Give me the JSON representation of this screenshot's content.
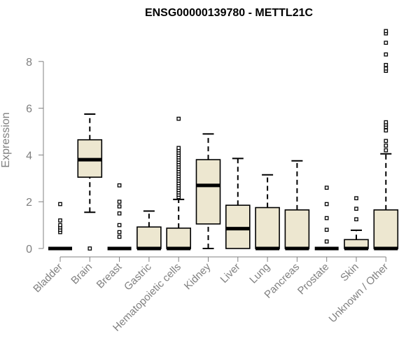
{
  "chart_data": {
    "type": "box",
    "title": "ENSG00000139780 - METTL21C",
    "ylabel": "Expression",
    "ylim": [
      0,
      9.3
    ],
    "yticks": [
      0,
      2,
      4,
      6,
      8
    ],
    "box_fill": "#ede7d0",
    "line_color": "#000000",
    "axis_color": "#808080",
    "categories": [
      "Bladder",
      "Brain",
      "Breast",
      "Gastric",
      "Hematopoietic cells",
      "Kidney",
      "Liver",
      "Lung",
      "Pancreas",
      "Prostate",
      "Skin",
      "Unknown / Other"
    ],
    "boxes": [
      {
        "q1": 0,
        "median": 0,
        "q3": 0,
        "wlo": 0,
        "whi": 0,
        "outliers": [
          0.7,
          0.8,
          0.9,
          1.0,
          1.2,
          1.9
        ]
      },
      {
        "q1": 3.05,
        "median": 3.8,
        "q3": 4.65,
        "wlo": 1.55,
        "whi": 5.75,
        "outliers": [
          0
        ]
      },
      {
        "q1": 0,
        "median": 0,
        "q3": 0,
        "wlo": 0,
        "whi": 0,
        "outliers": [
          0.5,
          0.7,
          1.0,
          1.5,
          1.8,
          2.0,
          2.7
        ]
      },
      {
        "q1": 0,
        "median": 0,
        "q3": 0.92,
        "wlo": 0,
        "whi": 1.6,
        "outliers": []
      },
      {
        "q1": 0,
        "median": 0,
        "q3": 0.87,
        "wlo": 0,
        "whi": 2.1,
        "outliers": [
          2.2,
          2.3,
          2.4,
          2.5,
          2.6,
          2.7,
          2.8,
          2.9,
          3.0,
          3.1,
          3.2,
          3.3,
          3.4,
          3.5,
          3.6,
          3.7,
          3.8,
          3.9,
          4.0,
          4.1,
          4.2,
          4.3,
          5.55
        ]
      },
      {
        "q1": 1.05,
        "median": 2.7,
        "q3": 3.8,
        "wlo": 0,
        "whi": 4.9,
        "outliers": []
      },
      {
        "q1": 0,
        "median": 0.85,
        "q3": 1.85,
        "wlo": 0,
        "whi": 3.85,
        "outliers": []
      },
      {
        "q1": 0,
        "median": 0,
        "q3": 1.75,
        "wlo": 0,
        "whi": 3.15,
        "outliers": []
      },
      {
        "q1": 0,
        "median": 0,
        "q3": 1.65,
        "wlo": 0,
        "whi": 3.75,
        "outliers": []
      },
      {
        "q1": 0,
        "median": 0,
        "q3": 0,
        "wlo": 0,
        "whi": 0,
        "outliers": [
          0.3,
          0.8,
          1.3,
          1.9,
          2.6
        ]
      },
      {
        "q1": 0,
        "median": 0,
        "q3": 0.38,
        "wlo": 0,
        "whi": 0.78,
        "outliers": [
          1.25,
          1.7,
          2.15
        ]
      },
      {
        "q1": 0,
        "median": 0,
        "q3": 1.65,
        "wlo": 0,
        "whi": 4.05,
        "outliers": [
          4.2,
          4.4,
          4.6,
          5.05,
          5.2,
          5.3,
          5.4,
          7.6,
          7.7,
          7.85,
          8.3,
          8.8,
          9.2,
          9.3
        ]
      }
    ]
  }
}
